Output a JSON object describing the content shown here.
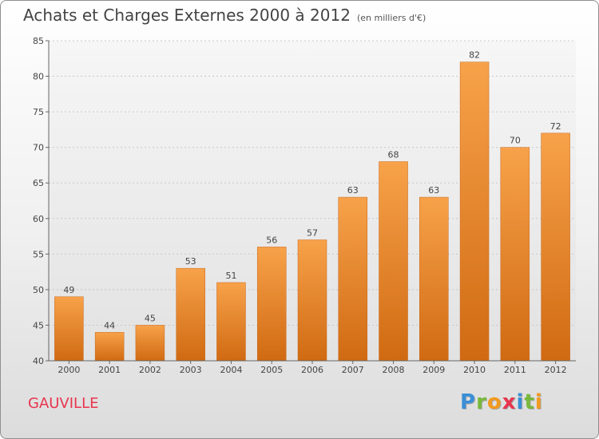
{
  "title": "Achats et Charges Externes 2000 à 2012",
  "unit": "(en milliers d'€)",
  "commune": "GAUVILLE",
  "logo": {
    "letters": [
      {
        "ch": "P",
        "color": "#3a8fd6"
      },
      {
        "ch": "r",
        "color": "#78b83a"
      },
      {
        "ch": "o",
        "color": "#f29a1f"
      },
      {
        "ch": "x",
        "color": "#e8344e"
      },
      {
        "ch": "i",
        "color": "#3a8fd6"
      },
      {
        "ch": "t",
        "color": "#78b83a"
      },
      {
        "ch": "i",
        "color": "#f29a1f"
      }
    ]
  },
  "chart_data": {
    "type": "bar",
    "categories": [
      "2000",
      "2001",
      "2002",
      "2003",
      "2004",
      "2005",
      "2006",
      "2007",
      "2008",
      "2009",
      "2010",
      "2011",
      "2012"
    ],
    "values": [
      49,
      44,
      45,
      53,
      51,
      56,
      57,
      63,
      68,
      63,
      82,
      70,
      72
    ],
    "ylim": [
      40,
      85
    ],
    "yticks": [
      40,
      45,
      50,
      55,
      60,
      65,
      70,
      75,
      80,
      85
    ],
    "grid": true,
    "bar_color": "#f0923a"
  }
}
